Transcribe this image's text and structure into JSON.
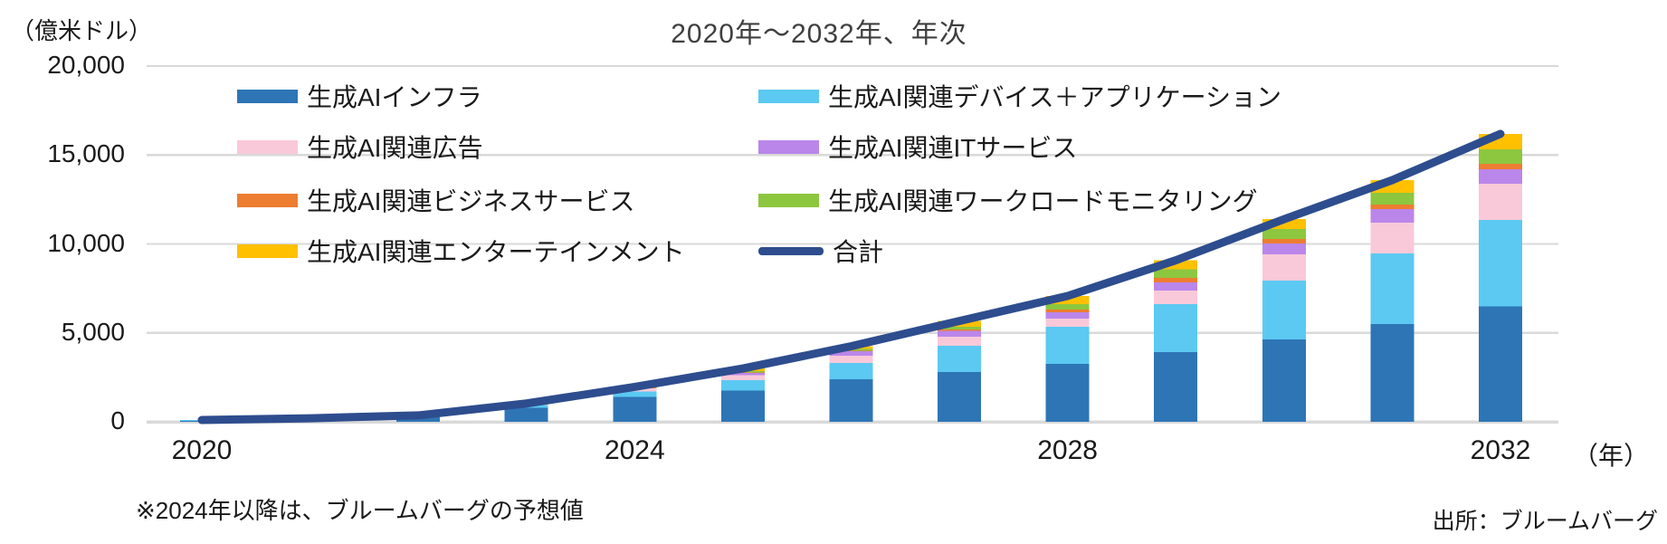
{
  "header": {
    "title": "2020年～2032年、年次",
    "unit_label": "（億米ドル）"
  },
  "footer": {
    "footnote": "※2024年以降は、ブルームバーグの予想値",
    "source": "出所：ブルームバーグ"
  },
  "colors": {
    "gridline": "#d9d9d9",
    "axis": "#d9d9d9",
    "text": "#1a1a1a",
    "title": "#3f3f3f"
  },
  "chart_data": {
    "type": "bar",
    "stacked": true,
    "overlay": "line",
    "title": "2020年～2032年、年次",
    "ylabel": "（億米ドル）",
    "xlabel": "（年）",
    "ylim": [
      0,
      20000
    ],
    "grid": true,
    "legend_position": "top-left-inside",
    "categories": [
      2020,
      2021,
      2022,
      2023,
      2024,
      2025,
      2026,
      2027,
      2028,
      2029,
      2030,
      2031,
      2032
    ],
    "series": [
      {
        "name": "生成AIインフラ",
        "color": "#2e75b6",
        "values": [
          70,
          140,
          250,
          800,
          1400,
          1750,
          2400,
          2800,
          3260,
          3920,
          4630,
          5500,
          6500
        ]
      },
      {
        "name": "生成AI関連デバイス＋アプリケーション",
        "color": "#5bc9f2",
        "values": [
          30,
          50,
          80,
          150,
          300,
          600,
          920,
          1480,
          2085,
          2695,
          3310,
          3970,
          4850
        ]
      },
      {
        "name": "生成AI関連広告",
        "color": "#f9c9d9",
        "values": [
          0,
          10,
          20,
          30,
          180,
          280,
          400,
          510,
          455,
          765,
          1480,
          1730,
          2040
        ]
      },
      {
        "name": "生成AI関連ITサービス",
        "color": "#ba86ea",
        "values": [
          0,
          0,
          10,
          20,
          40,
          130,
          250,
          330,
          360,
          460,
          600,
          760,
          810
        ]
      },
      {
        "name": "生成AI関連ビジネスサービス",
        "color": "#ed7d31",
        "values": [
          0,
          0,
          0,
          10,
          10,
          20,
          30,
          60,
          150,
          250,
          250,
          260,
          300
        ]
      },
      {
        "name": "生成AI関連ワークロードモニタリング",
        "color": "#8dc63f",
        "values": [
          0,
          0,
          0,
          10,
          20,
          70,
          100,
          170,
          305,
          480,
          560,
          660,
          820
        ]
      },
      {
        "name": "生成AI関連エンターテインメント",
        "color": "#ffc000",
        "values": [
          0,
          0,
          0,
          10,
          10,
          150,
          150,
          320,
          460,
          510,
          560,
          710,
          870
        ]
      }
    ],
    "total_line": {
      "name": "合計",
      "color": "#2e4d8e",
      "values": [
        100,
        200,
        360,
        1030,
        1960,
        3000,
        4250,
        5670,
        7075,
        9080,
        11390,
        13590,
        16190
      ]
    },
    "yticks": [
      {
        "value": 0,
        "label": "0"
      },
      {
        "value": 5000,
        "label": "5,000"
      },
      {
        "value": 10000,
        "label": "10,000"
      },
      {
        "value": 15000,
        "label": "15,000"
      },
      {
        "value": 20000,
        "label": "20,000"
      }
    ],
    "xticks": [
      {
        "index": 0,
        "label": "2020"
      },
      {
        "index": 4,
        "label": "2024"
      },
      {
        "index": 8,
        "label": "2028"
      },
      {
        "index": 12,
        "label": "2032"
      }
    ],
    "legend": {
      "left": [
        {
          "label": "生成AIインフラ",
          "color": "#2e75b6",
          "marker": "box"
        },
        {
          "label": "生成AI関連広告",
          "color": "#f9c9d9",
          "marker": "box"
        },
        {
          "label": "生成AI関連ビジネスサービス",
          "color": "#ed7d31",
          "marker": "box"
        },
        {
          "label": "生成AI関連エンターテインメント",
          "color": "#ffc000",
          "marker": "box"
        }
      ],
      "right": [
        {
          "label": "生成AI関連デバイス＋アプリケーション",
          "color": "#5bc9f2",
          "marker": "box"
        },
        {
          "label": "生成AI関連ITサービス",
          "color": "#ba86ea",
          "marker": "box"
        },
        {
          "label": "生成AI関連ワークロードモニタリング",
          "color": "#8dc63f",
          "marker": "box"
        },
        {
          "label": "合計",
          "color": "#2e4d8e",
          "marker": "line"
        }
      ]
    }
  }
}
